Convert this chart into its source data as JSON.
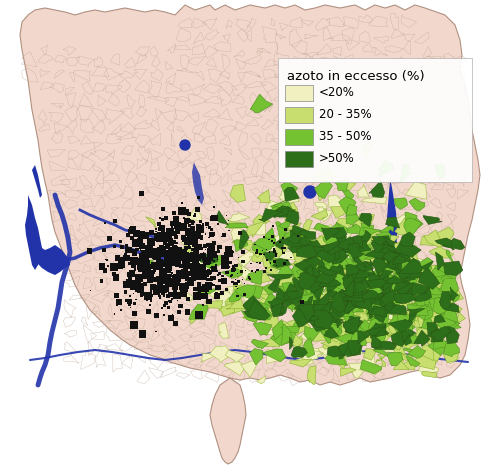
{
  "legend_title": "azoto in eccesso (%)",
  "legend_labels": [
    "<20%",
    "20 - 35%",
    "35 - 50%",
    ">50%"
  ],
  "legend_colors": [
    "#f0f0c0",
    "#c8de6e",
    "#74c232",
    "#2d6e1a"
  ],
  "background_color": "#f2d8cc",
  "water_color": "#2233aa",
  "urban_color": "#111111",
  "border_color": "#c0a090",
  "river_color": "#2233aa",
  "figsize": [
    5.0,
    4.65
  ],
  "dpi": 100,
  "legend_fontsize": 8.5,
  "legend_title_fontsize": 9.5
}
